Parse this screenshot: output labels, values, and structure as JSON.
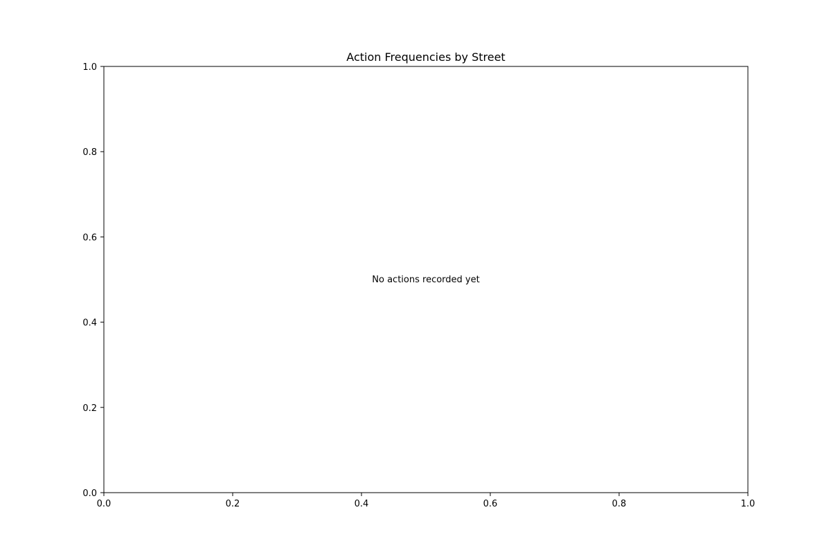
{
  "chart_data": {
    "type": "bar",
    "title": "Action Frequencies by Street",
    "xlabel": "",
    "ylabel": "",
    "xlim": [
      0.0,
      1.0
    ],
    "ylim": [
      0.0,
      1.0
    ],
    "x_ticks": [
      "0.0",
      "0.2",
      "0.4",
      "0.6",
      "0.8",
      "1.0"
    ],
    "y_ticks": [
      "0.0",
      "0.2",
      "0.4",
      "0.6",
      "0.8",
      "1.0"
    ],
    "categories": [],
    "series": [],
    "annotation": "No actions recorded yet",
    "grid": false,
    "legend": "none"
  }
}
